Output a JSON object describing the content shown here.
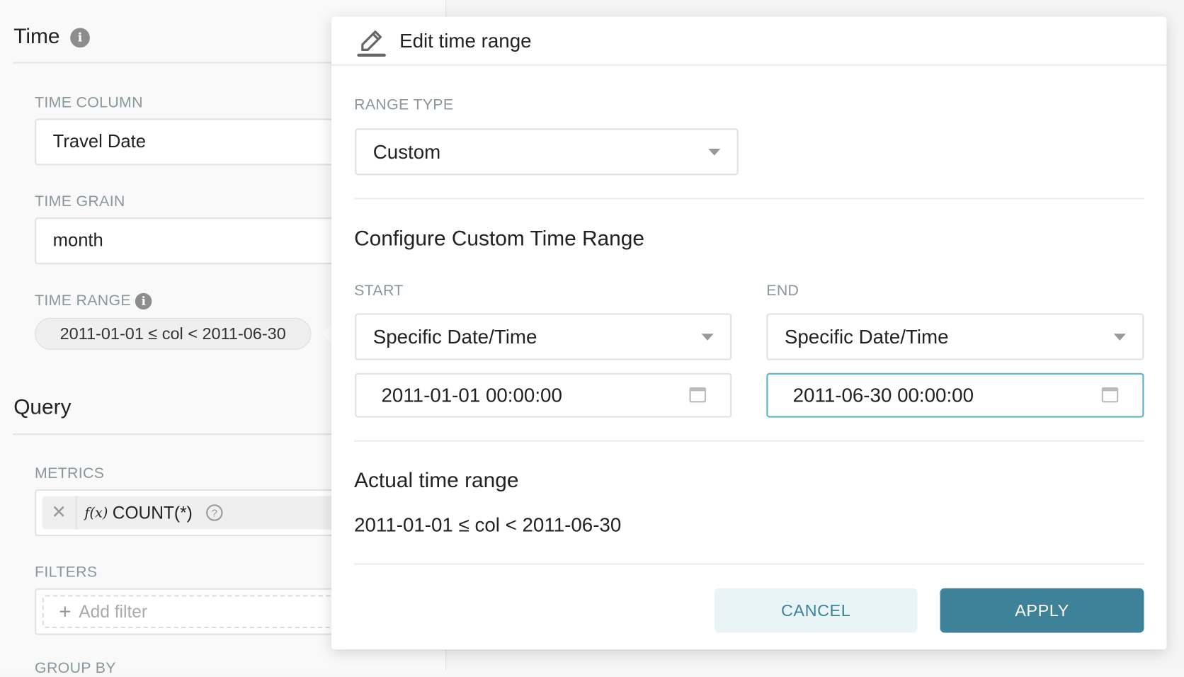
{
  "left_panel": {
    "time_section": {
      "title": "Time",
      "time_column": {
        "label": "TIME COLUMN",
        "value": "Travel Date"
      },
      "time_grain": {
        "label": "TIME GRAIN",
        "value": "month"
      },
      "time_range": {
        "label": "TIME RANGE",
        "value": "2011-01-01 ≤ col < 2011-06-30"
      }
    },
    "query_section": {
      "title": "Query",
      "metrics": {
        "label": "METRICS",
        "items": [
          {
            "fx": "f(x)",
            "value": "COUNT(*)"
          }
        ]
      },
      "filters": {
        "label": "FILTERS",
        "add_label": "Add filter"
      },
      "group_by": {
        "label": "GROUP BY"
      }
    }
  },
  "popover": {
    "title": "Edit time range",
    "range_type": {
      "label": "RANGE TYPE",
      "value": "Custom"
    },
    "custom_heading": "Configure Custom Time Range",
    "start": {
      "label": "START",
      "mode": "Specific Date/Time",
      "value": "2011-01-01 00:00:00"
    },
    "end": {
      "label": "END",
      "mode": "Specific Date/Time",
      "value": "2011-06-30 00:00:00"
    },
    "actual_heading": "Actual time range",
    "actual_value": "2011-01-01 ≤ col < 2011-06-30",
    "cancel_label": "CANCEL",
    "apply_label": "APPLY"
  },
  "colors": {
    "primary": "#3d8299",
    "primary_light": "#e8f4f6",
    "focus_border": "#5ab4c8"
  }
}
